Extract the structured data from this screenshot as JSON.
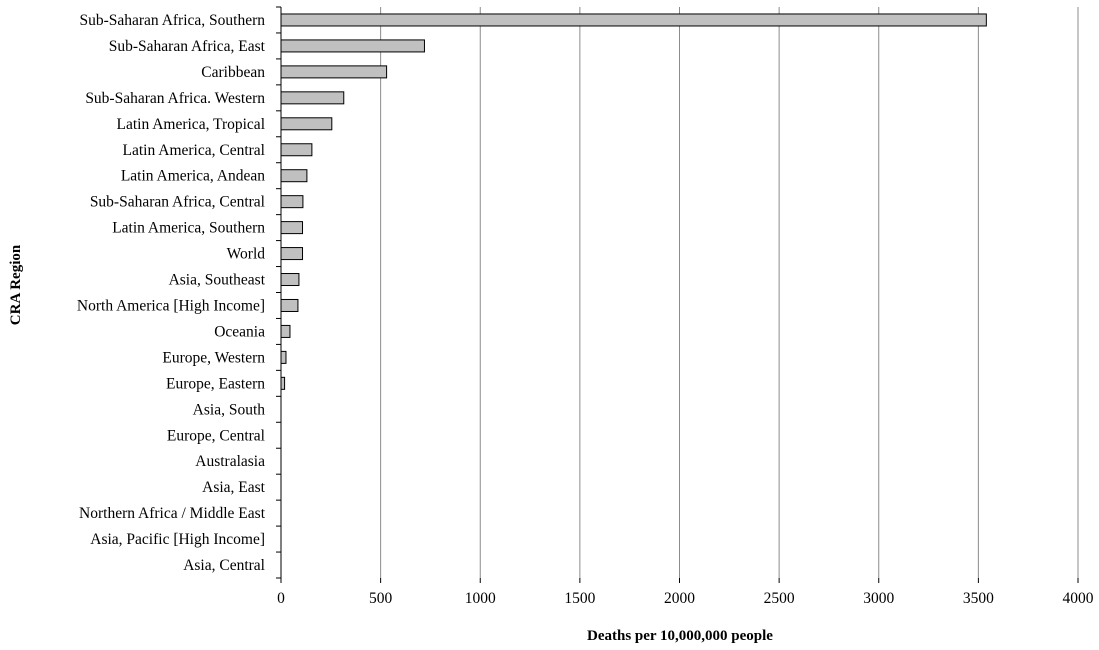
{
  "chart_data": {
    "type": "bar",
    "orientation": "horizontal",
    "title": "",
    "xlabel": "Deaths per 10,000,000 people",
    "ylabel": "CRA Region",
    "xlim": [
      0,
      4000
    ],
    "xticks": [
      0,
      500,
      1000,
      1500,
      2000,
      2500,
      3000,
      3500,
      4000
    ],
    "grid": "vertical",
    "legend": "none",
    "bar_color": "#c0c0c0",
    "categories": [
      "Sub-Saharan Africa, Southern",
      "Sub-Saharan Africa, East",
      "Caribbean",
      "Sub-Saharan Africa. Western",
      "Latin America, Tropical",
      "Latin America, Central",
      "Latin America, Andean",
      "Sub-Saharan Africa, Central",
      "Latin America, Southern",
      "World",
      "Asia, Southeast",
      "North America [High Income]",
      "Oceania",
      "Europe, Western",
      "Europe, Eastern",
      "Asia, South",
      "Europe, Central",
      "Australasia",
      "Asia, East",
      "Northern Africa / Middle East",
      "Asia, Pacific [High Income]",
      "Asia, Central"
    ],
    "values": [
      3540,
      720,
      530,
      315,
      255,
      155,
      130,
      110,
      108,
      108,
      90,
      85,
      45,
      25,
      18,
      0,
      0,
      0,
      0,
      0,
      0,
      0
    ]
  }
}
